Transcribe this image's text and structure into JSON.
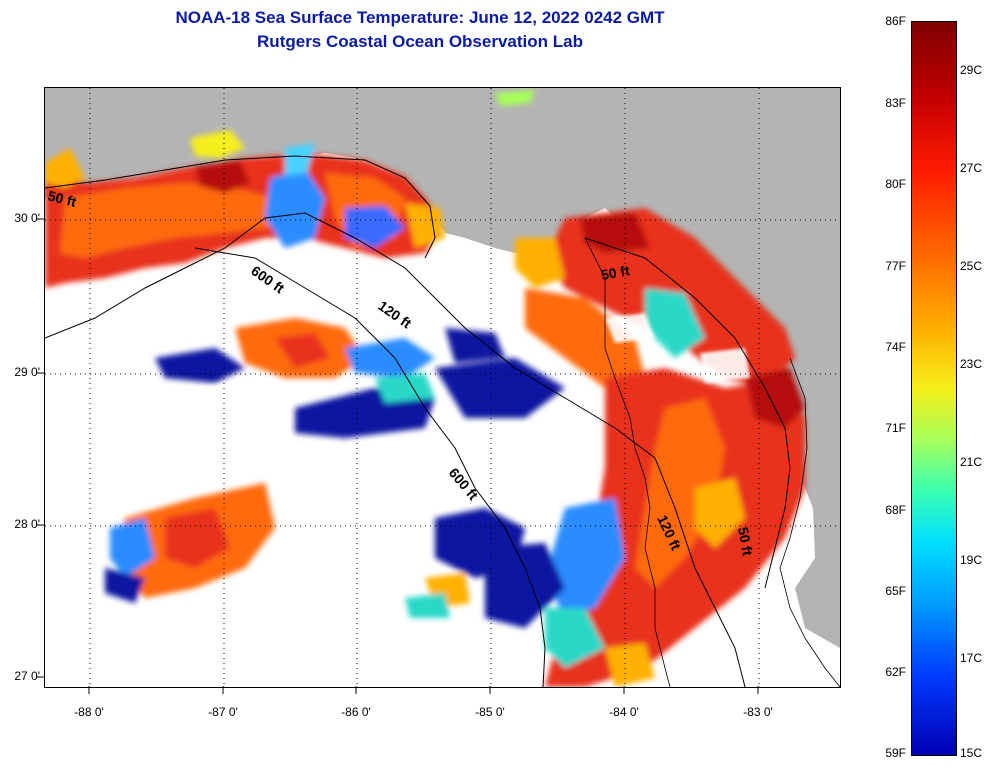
{
  "title": {
    "line1": "NOAA-18 Sea Surface Temperature:  June 12, 2022 0242 GMT",
    "line2": "Rutgers Coastal Ocean Observation Lab"
  },
  "map": {
    "lat_labels": [
      "30 0'",
      "29 0'",
      "28 0'",
      "27 0'"
    ],
    "lon_labels": [
      "-88 0'",
      "-87 0'",
      "-86 0'",
      "-85 0'",
      "-84 0'",
      "-83 0'"
    ],
    "contour_labels": [
      "50 ft",
      "600 ft",
      "120 ft",
      "50 ft",
      "600 ft",
      "120 ft",
      "50 ft"
    ],
    "colors": {
      "land": "#b4b4b4",
      "no_data": "#ffffff",
      "coastline": "#000000"
    }
  },
  "colorbar": {
    "f_labels": [
      "86F",
      "83F",
      "80F",
      "77F",
      "74F",
      "71F",
      "68F",
      "65F",
      "62F",
      "59F"
    ],
    "c_labels": [
      "29C",
      "27C",
      "25C",
      "23C",
      "21C",
      "19C",
      "17C",
      "15C"
    ]
  }
}
